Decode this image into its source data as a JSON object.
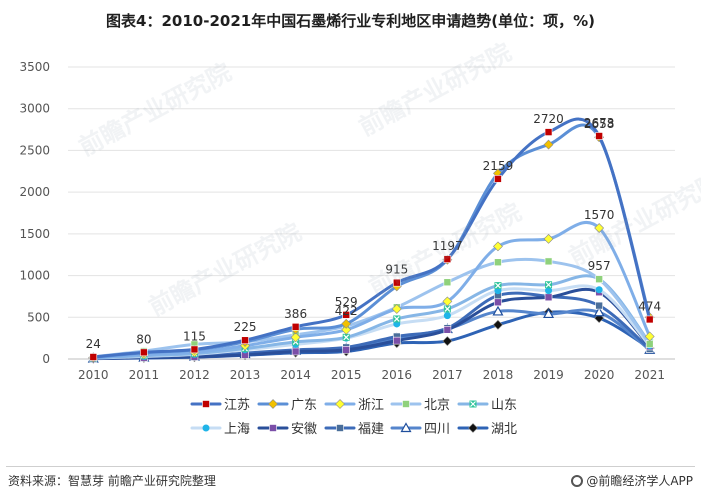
{
  "title": "图表4：2010-2021年中国石墨烯行业专利地区申请趋势(单位：项，%)",
  "source": "资料来源：智慧芽 前瞻产业研究院整理",
  "brand": "@前瞻经济学人APP",
  "watermark": "前瞻产业研究院",
  "chart_data": {
    "type": "line",
    "title": "图表4：2010-2021年中国石墨烯行业专利地区申请趋势(单位：项，%)",
    "xlabel": "",
    "ylabel": "",
    "ylim": [
      0,
      3500
    ],
    "yticks": [
      0,
      500,
      1000,
      1500,
      2000,
      2500,
      3000,
      3500
    ],
    "categories": [
      "2010",
      "2011",
      "2012",
      "2013",
      "2014",
      "2015",
      "2016",
      "2017",
      "2018",
      "2019",
      "2020",
      "2021"
    ],
    "legend_position": "bottom",
    "series": [
      {
        "name": "江苏",
        "color": "#4472C4",
        "marker": "square",
        "marker_color": "#C00000",
        "values": [
          24,
          80,
          115,
          225,
          386,
          529,
          915,
          1197,
          2159,
          2720,
          2673,
          474
        ],
        "labels": [
          "24",
          "80",
          "115",
          "225",
          "386",
          "529",
          "915",
          "1197",
          "2159",
          "2720",
          "2673",
          "474"
        ]
      },
      {
        "name": "广东",
        "color": "#5B8FD6",
        "marker": "diamond",
        "marker_color": "#F2C100",
        "values": [
          20,
          75,
          110,
          205,
          355,
          422,
          870,
          1190,
          2225,
          2570,
          2658,
          500
        ],
        "labels": [
          "",
          "",
          "",
          "",
          "",
          "422",
          "",
          "",
          "",
          "",
          "2658",
          ""
        ]
      },
      {
        "name": "浙江",
        "color": "#7FAEE8",
        "marker": "diamond",
        "marker_color": "#FFFF33",
        "values": [
          15,
          55,
          80,
          160,
          260,
          350,
          600,
          690,
          1350,
          1440,
          1570,
          270
        ],
        "labels": [
          "",
          "",
          "",
          "",
          "",
          "",
          "",
          "",
          "",
          "",
          "1570",
          ""
        ]
      },
      {
        "name": "北京",
        "color": "#9DC3EE",
        "marker": "square",
        "marker_color": "#8FD17B",
        "values": [
          25,
          95,
          175,
          205,
          290,
          395,
          620,
          920,
          1160,
          1170,
          957,
          180
        ],
        "labels": [
          "",
          "",
          "",
          "",
          "",
          "",
          "",
          "",
          "",
          "",
          "957",
          ""
        ]
      },
      {
        "name": "山东",
        "color": "#86B6E6",
        "marker": "x",
        "marker_color": "#2EC49A",
        "values": [
          12,
          40,
          65,
          125,
          205,
          260,
          480,
          600,
          880,
          890,
          957,
          190
        ],
        "labels": [
          "",
          "",
          "",
          "",
          "",
          "",
          "",
          "",
          "",
          "",
          "",
          ""
        ]
      },
      {
        "name": "上海",
        "color": "#C6DDF4",
        "marker": "circle",
        "marker_color": "#1FB4E8",
        "values": [
          10,
          30,
          55,
          110,
          175,
          250,
          420,
          520,
          820,
          820,
          830,
          160
        ],
        "labels": [
          "",
          "",
          "",
          "",
          "",
          "",
          "",
          "",
          "",
          "",
          "",
          ""
        ]
      },
      {
        "name": "安徽",
        "color": "#2A4F9A",
        "marker": "square",
        "marker_color": "#7B4FA8",
        "values": [
          5,
          15,
          25,
          50,
          90,
          110,
          220,
          350,
          680,
          740,
          800,
          150
        ],
        "labels": [
          "",
          "",
          "",
          "",
          "",
          "",
          "",
          "",
          "",
          "",
          "",
          ""
        ]
      },
      {
        "name": "福建",
        "color": "#3D6BB8",
        "marker": "square",
        "marker_color": "#4A6E9A",
        "values": [
          8,
          20,
          35,
          70,
          110,
          140,
          270,
          370,
          760,
          750,
          640,
          120
        ],
        "labels": [
          "",
          "",
          "",
          "",
          "",
          "",
          "",
          "",
          "",
          "",
          "",
          ""
        ]
      },
      {
        "name": "四川",
        "color": "#5585CC",
        "marker": "triangle",
        "marker_color": "#FFFFFF",
        "values": [
          6,
          18,
          30,
          60,
          100,
          130,
          250,
          360,
          570,
          540,
          560,
          110
        ],
        "labels": [
          "",
          "",
          "",
          "",
          "",
          "",
          "",
          "",
          "",
          "",
          "",
          ""
        ]
      },
      {
        "name": "湖北",
        "color": "#2E63B5",
        "marker": "diamond",
        "marker_color": "#111111",
        "values": [
          4,
          12,
          22,
          45,
          75,
          90,
          190,
          215,
          410,
          560,
          490,
          130
        ],
        "labels": [
          "",
          "",
          "",
          "",
          "",
          "",
          "",
          "",
          "",
          "",
          "",
          ""
        ]
      }
    ]
  }
}
